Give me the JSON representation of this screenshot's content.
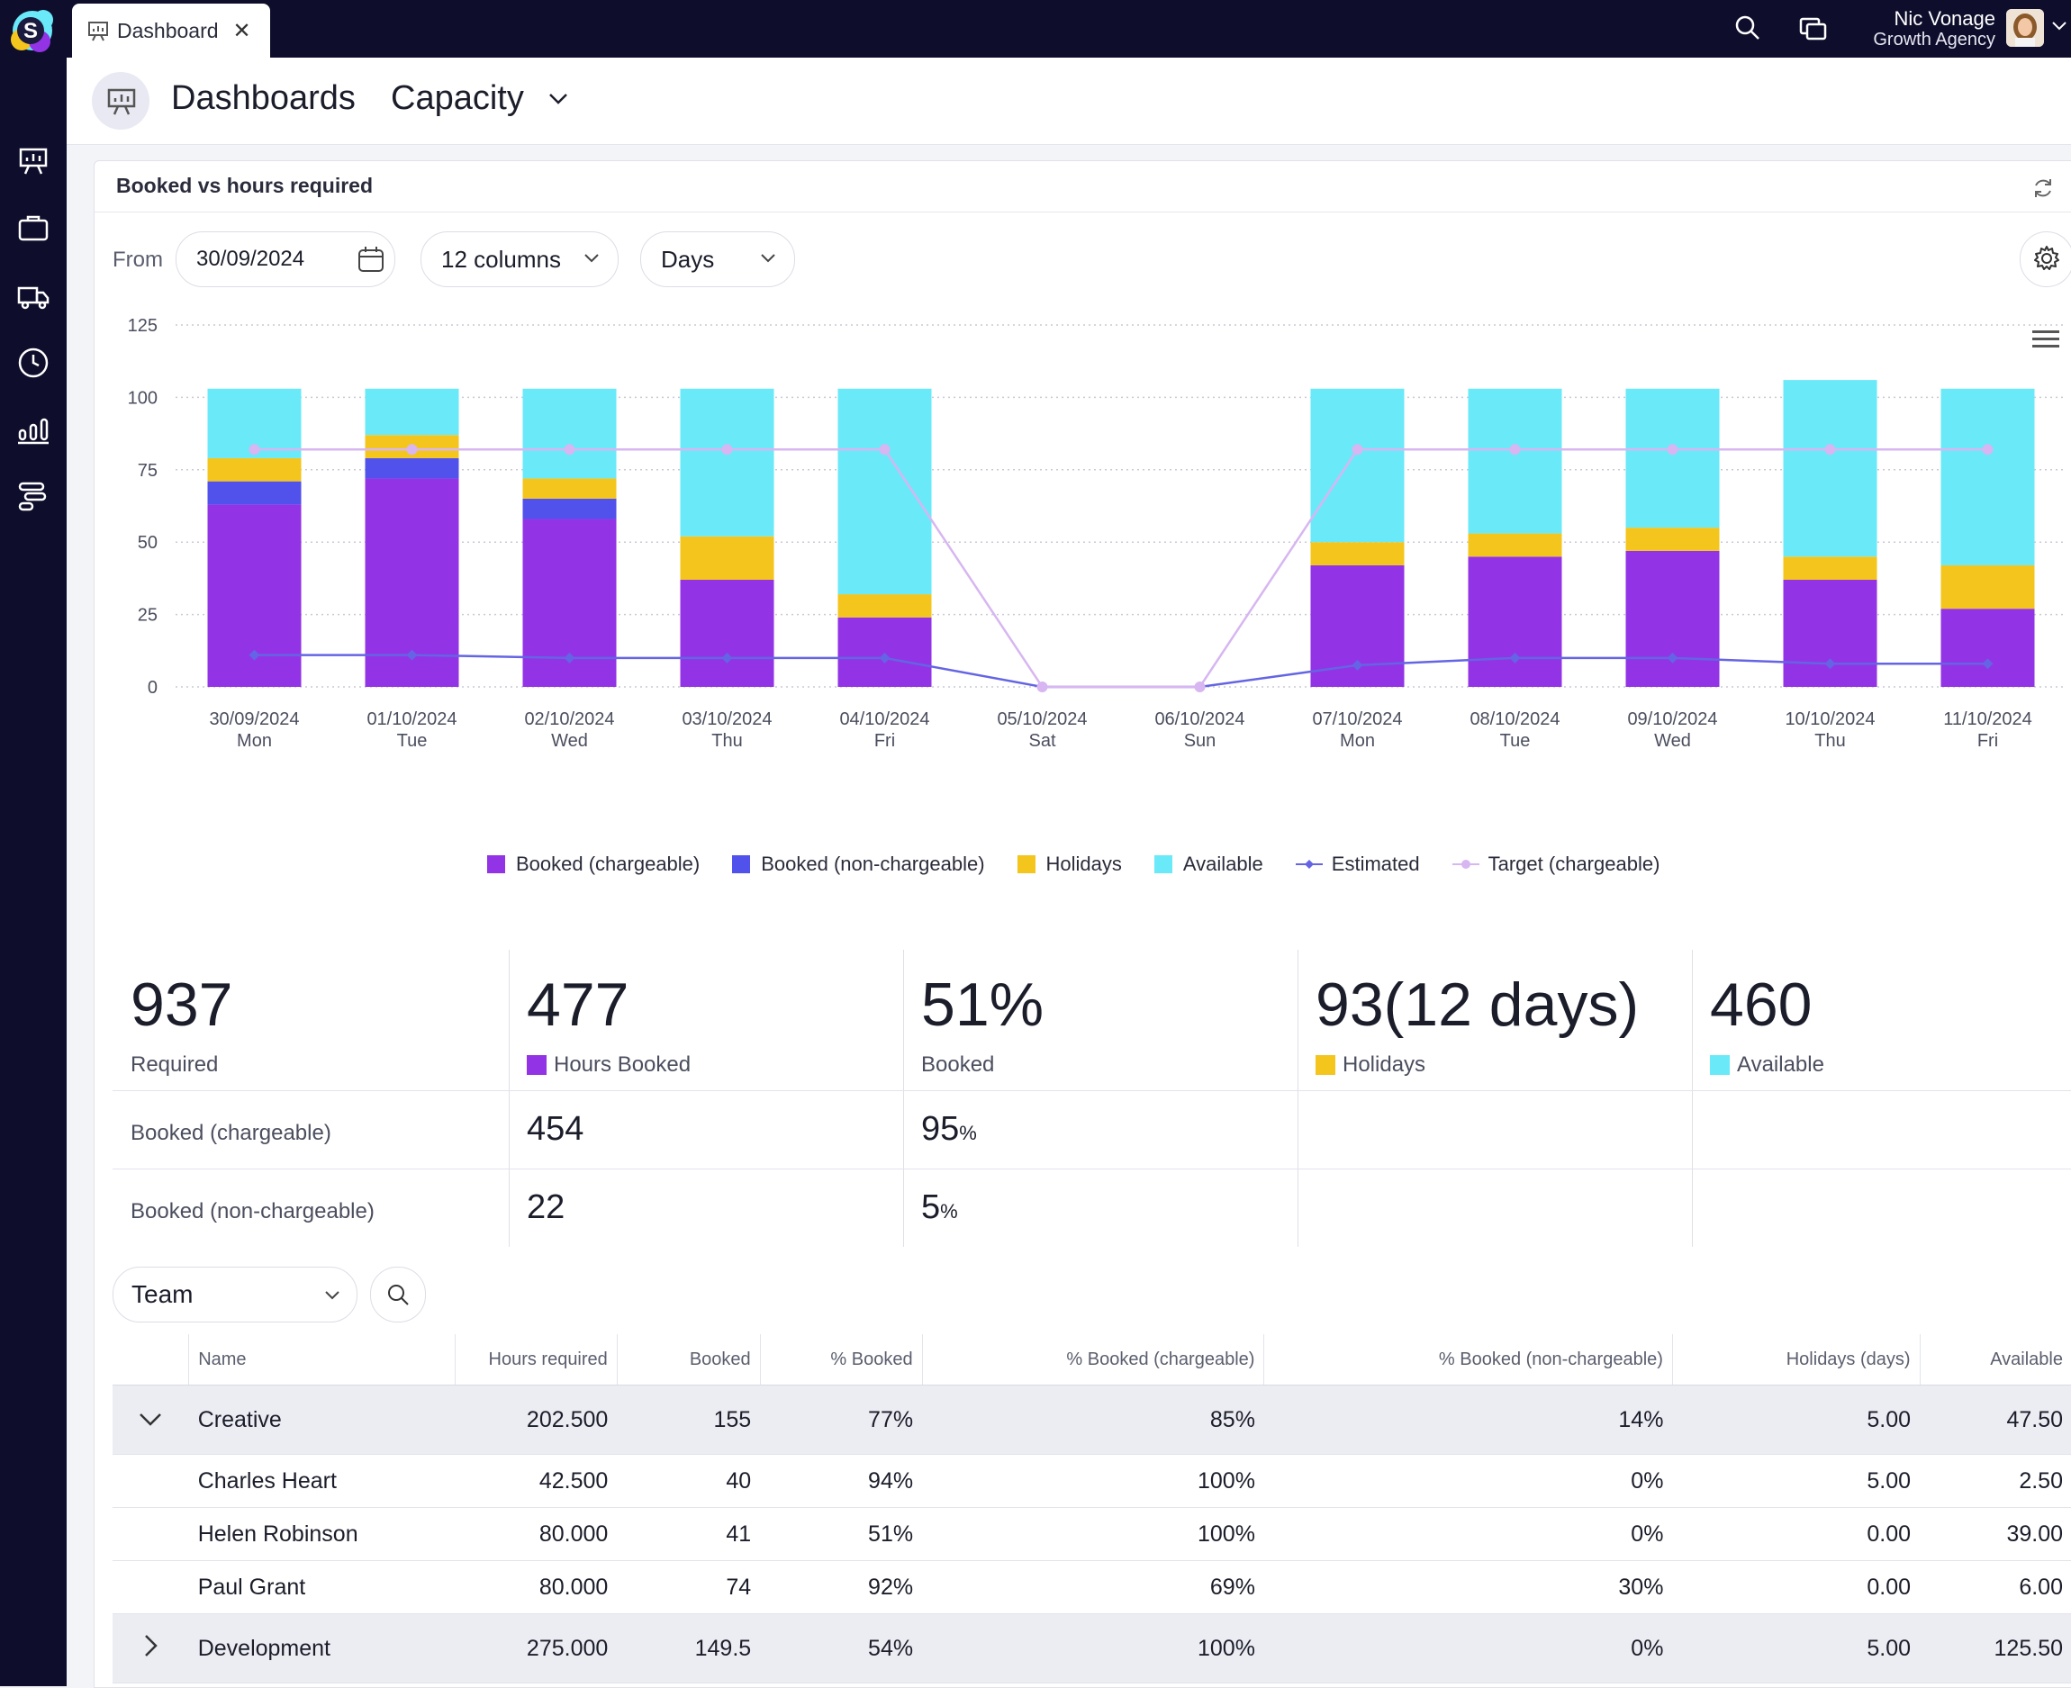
{
  "tab": {
    "label": "Dashboard"
  },
  "user": {
    "name": "Nic Vonage",
    "org": "Growth Agency"
  },
  "header": {
    "title": "Dashboards",
    "subtitle": "Capacity"
  },
  "card": {
    "title": "Booked vs hours required"
  },
  "filters": {
    "from_label": "From",
    "date": "30/09/2024",
    "columns": "12 columns",
    "period": "Days"
  },
  "chart_data": {
    "type": "bar",
    "stacked": true,
    "categories": [
      "30/09/2024",
      "01/10/2024",
      "02/10/2024",
      "03/10/2024",
      "04/10/2024",
      "05/10/2024",
      "06/10/2024",
      "07/10/2024",
      "08/10/2024",
      "09/10/2024",
      "10/10/2024",
      "11/10/2024"
    ],
    "weekdays": [
      "Mon",
      "Tue",
      "Wed",
      "Thu",
      "Fri",
      "Sat",
      "Sun",
      "Mon",
      "Tue",
      "Wed",
      "Thu",
      "Fri"
    ],
    "ylim": [
      0,
      125
    ],
    "yticks": [
      "0",
      "25",
      "50",
      "75",
      "100",
      "125"
    ],
    "ytick_values": [
      0,
      25,
      50,
      75,
      100,
      125
    ],
    "grid": true,
    "legend_position": "bottom",
    "series": [
      {
        "name": "Booked (chargeable)",
        "kind": "bar",
        "color": "#9333e6",
        "values": [
          63,
          72,
          58,
          37,
          24,
          0,
          0,
          42,
          45,
          47,
          37,
          27
        ]
      },
      {
        "name": "Booked (non-chargeable)",
        "kind": "bar",
        "color": "#5151ec",
        "values": [
          8,
          7,
          7,
          0,
          0,
          0,
          0,
          0,
          0,
          0,
          0,
          0
        ]
      },
      {
        "name": "Holidays",
        "kind": "bar",
        "color": "#f4c51d",
        "values": [
          8,
          8,
          7,
          15,
          8,
          0,
          0,
          8,
          8,
          8,
          8,
          15
        ]
      },
      {
        "name": "Available",
        "kind": "bar",
        "color": "#6ae9f9",
        "values": [
          24,
          16,
          31,
          51,
          71,
          0,
          0,
          53,
          50,
          48,
          61,
          61
        ]
      },
      {
        "name": "Estimated",
        "kind": "line",
        "color": "#6464e4",
        "values": [
          11,
          11,
          10,
          10,
          10,
          0,
          0,
          7.5,
          10,
          10,
          8,
          8
        ]
      },
      {
        "name": "Target (chargeable)",
        "kind": "line",
        "color": "#d7b6f1",
        "values": [
          82,
          82,
          82,
          82,
          82,
          0,
          0,
          82,
          82,
          82,
          82,
          82
        ]
      }
    ]
  },
  "stats": {
    "required": {
      "value": "937",
      "label": "Required"
    },
    "booked": {
      "value": "477",
      "label": "Hours Booked"
    },
    "booked_pct": {
      "value": "51%",
      "label": "Booked"
    },
    "holidays": {
      "value": "93(12 days)",
      "label": "Holidays"
    },
    "available": {
      "value": "460",
      "label": "Available"
    },
    "rows": [
      {
        "label": "Booked (chargeable)",
        "value": "454",
        "pct": "95",
        "unit": "%"
      },
      {
        "label": "Booked (non-chargeable)",
        "value": "22",
        "pct": "5",
        "unit": "%"
      }
    ]
  },
  "team": {
    "group_by": "Team"
  },
  "table": {
    "headers": [
      "Name",
      "Hours required",
      "Booked",
      "% Booked",
      "% Booked (chargeable)",
      "% Booked (non-chargeable)",
      "Holidays (days)",
      "Available"
    ],
    "rows": [
      {
        "type": "group",
        "expanded": true,
        "cells": [
          "Creative",
          "202.500",
          "155",
          "77%",
          "85%",
          "14%",
          "5.00",
          "47.50"
        ]
      },
      {
        "type": "member",
        "cells": [
          "Charles Heart",
          "42.500",
          "40",
          "94%",
          "100%",
          "0%",
          "5.00",
          "2.50"
        ]
      },
      {
        "type": "member",
        "cells": [
          "Helen Robinson",
          "80.000",
          "41",
          "51%",
          "100%",
          "0%",
          "0.00",
          "39.00"
        ]
      },
      {
        "type": "member",
        "cells": [
          "Paul Grant",
          "80.000",
          "74",
          "92%",
          "69%",
          "30%",
          "0.00",
          "6.00"
        ]
      },
      {
        "type": "group",
        "expanded": false,
        "cells": [
          "Development",
          "275.000",
          "149.5",
          "54%",
          "100%",
          "0%",
          "5.00",
          "125.50"
        ]
      }
    ]
  },
  "colors": {
    "booked_chargeable": "#9333e6",
    "booked_nonchargeable": "#5151ec",
    "holidays": "#f4c51d",
    "available": "#6ae9f9",
    "nav": "#0e0e2c"
  }
}
